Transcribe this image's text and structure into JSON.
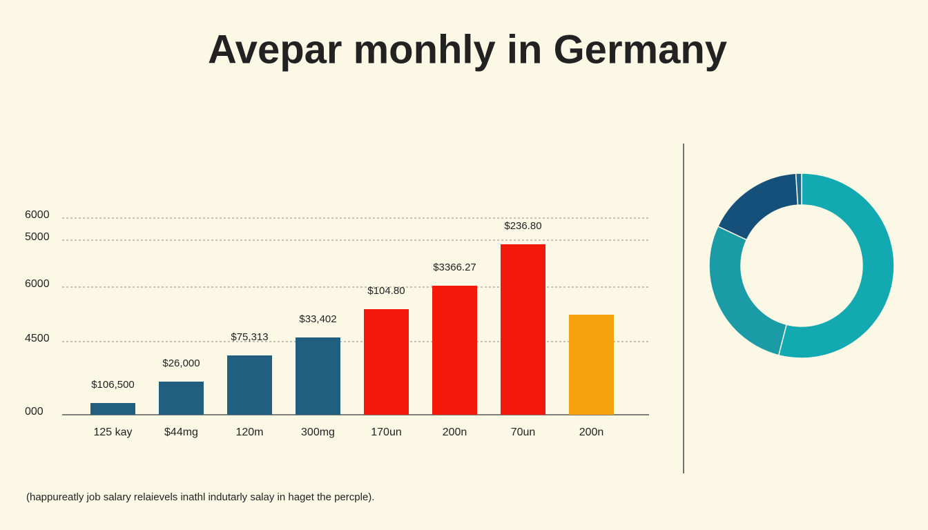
{
  "chart_data": [
    {
      "type": "bar",
      "title": "Avepar monhly in Germany",
      "categories": [
        "125 kay",
        "$44mg",
        "120m",
        "300mg",
        "170un",
        "200n",
        "70un",
        "200n"
      ],
      "values": [
        358,
        1011,
        1810,
        2358,
        3221,
        3937,
        5200,
        3053
      ],
      "colors": [
        "#215e80",
        "#215e80",
        "#215e80",
        "#215e80",
        "#f2180a",
        "#f2180a",
        "#f2180a",
        "#f6a20f"
      ],
      "annotations": [
        "$106,500",
        "$26,000",
        "$75,313",
        "$33,402",
        "$104.80",
        "$3366.27",
        "$236.80"
      ],
      "caption": "(happureatly job salary relaievels inathl indutarly salay in haget the percple).",
      "ylim": [
        0,
        6000
      ],
      "yticks": [
        6000,
        {
          "value": 5326,
          "label": "5000"
        },
        {
          "value": 3895,
          "label": "6000"
        },
        {
          "value": 2232,
          "label": "4500"
        },
        {
          "value": 0,
          "label": "000"
        }
      ],
      "grid": true
    },
    {
      "type": "pie",
      "values": [
        54,
        28,
        17,
        1
      ],
      "colors": [
        "#13a9b1",
        "#1a9ba6",
        "#14507a",
        "#1d6a8e"
      ],
      "donut": true
    }
  ]
}
